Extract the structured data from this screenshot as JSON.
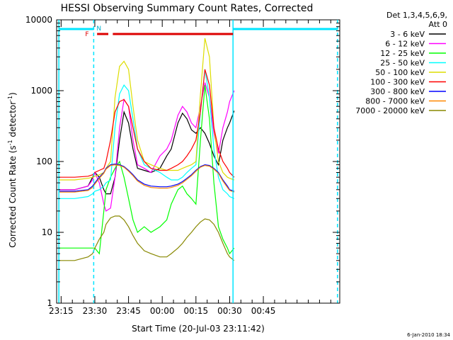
{
  "chart_data": {
    "type": "line",
    "title": "HESSI Observing Summary Count Rates, Corrected",
    "xlabel": "Start Time (20-Jul-03 23:11:42)",
    "ylabel_main": "Corrected Count Rate (s",
    "ylabel_sup1": "-1",
    "ylabel_mid": " detector",
    "ylabel_sup2": "-1",
    "ylabel_end": ")",
    "yscale": "log",
    "ylim": [
      1,
      10000
    ],
    "xlim_minutes": [
      -14,
      112
    ],
    "y_ticks": [
      {
        "value": 1,
        "label": "1"
      },
      {
        "value": 10,
        "label": "10"
      },
      {
        "value": 100,
        "label": "100"
      },
      {
        "value": 1000,
        "label": "1000"
      },
      {
        "value": 10000,
        "label": "10000"
      }
    ],
    "x_ticks": [
      {
        "value": -12,
        "label": "23:15"
      },
      {
        "value": 3,
        "label": "23:30"
      },
      {
        "value": 18,
        "label": "23:45"
      },
      {
        "value": 33,
        "label": "00:00"
      },
      {
        "value": 48,
        "label": "00:15"
      },
      {
        "value": 63,
        "label": "00:30"
      },
      {
        "value": 78,
        "label": "00:45"
      }
    ],
    "legend_header": [
      "Det 1,3,4,5,6,9,",
      "Att 0"
    ],
    "legend_position": "right",
    "footer_date": "6-Jan-2010 18:34",
    "markers": {
      "F_label": "F",
      "N_label": "N"
    },
    "series": [
      {
        "name": "3 - 6 keV",
        "color": "#000000",
        "x": [
          -13,
          -6,
          0,
          2,
          3,
          5,
          7,
          8,
          10,
          12,
          14,
          16,
          18,
          20,
          22,
          25,
          28,
          32,
          35,
          37,
          40,
          42,
          44,
          46,
          48,
          50,
          52,
          54,
          56,
          58,
          60,
          62,
          63,
          65
        ],
        "y": [
          40,
          40,
          45,
          60,
          70,
          60,
          40,
          35,
          35,
          60,
          200,
          500,
          350,
          150,
          80,
          75,
          70,
          80,
          120,
          150,
          350,
          480,
          400,
          280,
          250,
          300,
          250,
          180,
          120,
          90,
          200,
          300,
          350,
          520
        ]
      },
      {
        "name": "6 - 12 keV",
        "color": "#ff00ff",
        "x": [
          -13,
          -6,
          0,
          2,
          3,
          5,
          7,
          8,
          10,
          12,
          14,
          16,
          18,
          20,
          22,
          25,
          28,
          32,
          35,
          37,
          40,
          42,
          44,
          46,
          48,
          50,
          52,
          54,
          56,
          58,
          60,
          62,
          63,
          65
        ],
        "y": [
          40,
          40,
          45,
          55,
          70,
          50,
          25,
          20,
          22,
          60,
          300,
          750,
          600,
          200,
          90,
          80,
          70,
          120,
          150,
          200,
          450,
          600,
          500,
          350,
          300,
          600,
          1300,
          800,
          250,
          130,
          300,
          500,
          700,
          1000
        ]
      },
      {
        "name": "12 - 25 keV",
        "color": "#00ff00",
        "x": [
          -13,
          -6,
          0,
          2,
          3,
          5,
          7,
          8,
          10,
          12,
          14,
          16,
          18,
          20,
          22,
          25,
          28,
          32,
          35,
          37,
          40,
          42,
          44,
          46,
          48,
          50,
          52,
          54,
          56,
          58,
          60,
          62,
          63,
          65
        ],
        "y": [
          6,
          6,
          6,
          6,
          6,
          5,
          20,
          40,
          60,
          80,
          100,
          60,
          30,
          15,
          10,
          12,
          10,
          12,
          15,
          25,
          40,
          45,
          35,
          30,
          25,
          200,
          1200,
          400,
          50,
          12,
          8,
          6,
          5,
          6
        ]
      },
      {
        "name": "25 - 50 keV",
        "color": "#00ffff",
        "x": [
          -13,
          -6,
          0,
          2,
          3,
          5,
          7,
          8,
          10,
          12,
          14,
          16,
          18,
          20,
          22,
          25,
          28,
          32,
          35,
          37,
          40,
          42,
          44,
          46,
          48,
          50,
          52,
          54,
          56,
          58,
          60,
          62,
          63,
          65
        ],
        "y": [
          30,
          30,
          32,
          35,
          38,
          40,
          45,
          50,
          55,
          300,
          900,
          1200,
          1000,
          400,
          150,
          90,
          80,
          70,
          60,
          55,
          55,
          60,
          70,
          80,
          90,
          500,
          2000,
          800,
          150,
          60,
          40,
          35,
          32,
          30
        ]
      },
      {
        "name": "50 - 100 keV",
        "color": "#dddd00",
        "x": [
          -13,
          -6,
          0,
          2,
          3,
          5,
          7,
          8,
          10,
          12,
          14,
          16,
          18,
          20,
          22,
          25,
          28,
          32,
          35,
          37,
          40,
          42,
          44,
          46,
          48,
          50,
          52,
          54,
          56,
          58,
          60,
          62,
          63,
          65
        ],
        "y": [
          55,
          55,
          58,
          60,
          62,
          65,
          70,
          80,
          100,
          800,
          2200,
          2600,
          2000,
          600,
          200,
          100,
          90,
          80,
          75,
          75,
          75,
          80,
          85,
          90,
          100,
          900,
          5500,
          3000,
          300,
          100,
          70,
          60,
          58,
          55
        ]
      },
      {
        "name": "100 - 300 keV",
        "color": "#ff0000",
        "x": [
          -13,
          -6,
          0,
          2,
          3,
          5,
          7,
          8,
          10,
          12,
          14,
          16,
          18,
          20,
          22,
          25,
          28,
          32,
          35,
          37,
          40,
          42,
          44,
          46,
          48,
          50,
          52,
          54,
          56,
          58,
          60,
          62,
          63,
          65
        ],
        "y": [
          60,
          60,
          62,
          65,
          70,
          75,
          80,
          100,
          200,
          500,
          700,
          750,
          600,
          300,
          150,
          100,
          80,
          75,
          75,
          80,
          90,
          100,
          120,
          150,
          200,
          500,
          2000,
          1200,
          300,
          150,
          100,
          80,
          70,
          60
        ]
      },
      {
        "name": "300 - 800 keV",
        "color": "#0000ff",
        "x": [
          -13,
          -6,
          0,
          2,
          3,
          5,
          7,
          8,
          10,
          12,
          14,
          16,
          18,
          20,
          22,
          25,
          28,
          32,
          35,
          37,
          40,
          42,
          44,
          46,
          48,
          50,
          52,
          54,
          56,
          58,
          60,
          62,
          63,
          65
        ],
        "y": [
          38,
          38,
          40,
          45,
          50,
          60,
          70,
          80,
          90,
          92,
          90,
          85,
          75,
          65,
          55,
          48,
          45,
          44,
          44,
          45,
          48,
          52,
          58,
          65,
          75,
          85,
          90,
          88,
          80,
          70,
          55,
          45,
          40,
          38
        ]
      },
      {
        "name": "800 - 7000 keV",
        "color": "#ff8800",
        "x": [
          -13,
          -6,
          0,
          2,
          3,
          5,
          7,
          8,
          10,
          12,
          14,
          16,
          18,
          20,
          22,
          25,
          28,
          32,
          35,
          37,
          40,
          42,
          44,
          46,
          48,
          50,
          52,
          54,
          56,
          58,
          60,
          62,
          63,
          65
        ],
        "y": [
          37,
          37,
          39,
          43,
          48,
          58,
          68,
          78,
          88,
          90,
          88,
          83,
          73,
          63,
          53,
          46,
          43,
          42,
          42,
          43,
          46,
          50,
          56,
          63,
          73,
          83,
          88,
          86,
          78,
          68,
          53,
          43,
          39,
          37
        ]
      },
      {
        "name": "7000 - 20000 keV",
        "color": "#888800",
        "x": [
          -13,
          -6,
          0,
          2,
          3,
          5,
          7,
          8,
          10,
          12,
          14,
          16,
          18,
          20,
          22,
          25,
          28,
          32,
          35,
          37,
          40,
          42,
          44,
          46,
          48,
          50,
          52,
          54,
          56,
          58,
          60,
          62,
          63,
          65
        ],
        "y": [
          4,
          4,
          4.5,
          5,
          6,
          8,
          10,
          13,
          16,
          17,
          17,
          15,
          12,
          9,
          7,
          5.5,
          5,
          4.5,
          4.5,
          5,
          6,
          7,
          8.5,
          10,
          12,
          14,
          15.5,
          15,
          13,
          10,
          7,
          5,
          4.5,
          4
        ]
      }
    ]
  }
}
